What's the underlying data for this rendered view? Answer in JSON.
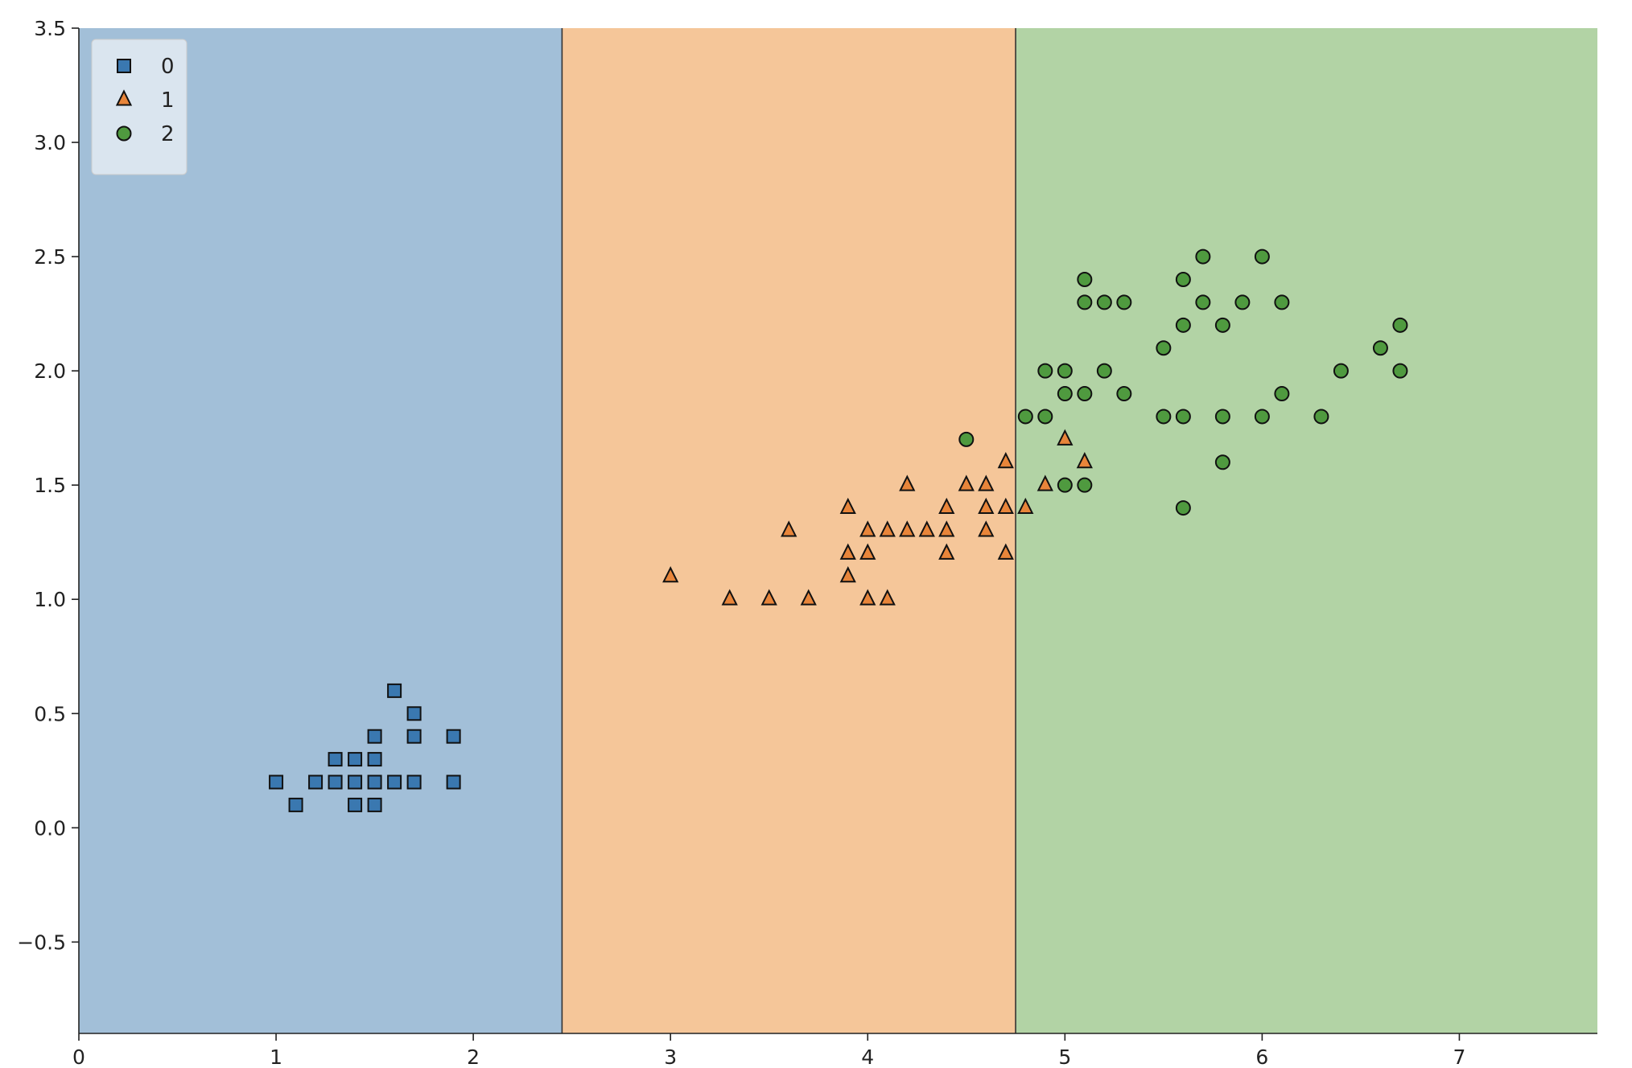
{
  "chart_data": {
    "type": "scatter",
    "title": "",
    "xlabel": "",
    "ylabel": "",
    "xlim": [
      0,
      7.7
    ],
    "ylim": [
      -0.9,
      3.5
    ],
    "x_ticks": [
      0,
      1,
      2,
      3,
      4,
      5,
      6,
      7
    ],
    "y_ticks": [
      -0.5,
      0.0,
      0.5,
      1.0,
      1.5,
      2.0,
      2.5,
      3.0,
      3.5
    ],
    "x_tick_labels": [
      "0",
      "1",
      "2",
      "3",
      "4",
      "5",
      "6",
      "7"
    ],
    "y_tick_labels": [
      "−0.5",
      "0.0",
      "0.5",
      "1.0",
      "1.5",
      "2.0",
      "2.5",
      "3.0",
      "3.5"
    ],
    "legend_position": "top-left",
    "decision_regions": [
      {
        "class": "0",
        "x_from": 0,
        "x_to": 2.45,
        "color": "#a2bfd8"
      },
      {
        "class": "1",
        "x_from": 2.45,
        "x_to": 4.75,
        "color": "#f5c699"
      },
      {
        "class": "2",
        "x_from": 4.75,
        "x_to": 7.7,
        "color": "#b2d3a5"
      }
    ],
    "boundaries": [
      2.45,
      4.75
    ],
    "series": [
      {
        "name": "0",
        "marker": "square",
        "color": "#3a78b0",
        "points": [
          [
            1.0,
            0.2
          ],
          [
            1.1,
            0.1
          ],
          [
            1.2,
            0.2
          ],
          [
            1.3,
            0.2
          ],
          [
            1.3,
            0.3
          ],
          [
            1.4,
            0.1
          ],
          [
            1.4,
            0.2
          ],
          [
            1.4,
            0.3
          ],
          [
            1.5,
            0.1
          ],
          [
            1.5,
            0.2
          ],
          [
            1.5,
            0.3
          ],
          [
            1.5,
            0.4
          ],
          [
            1.6,
            0.2
          ],
          [
            1.6,
            0.6
          ],
          [
            1.7,
            0.2
          ],
          [
            1.7,
            0.4
          ],
          [
            1.7,
            0.5
          ],
          [
            1.9,
            0.2
          ],
          [
            1.9,
            0.4
          ]
        ]
      },
      {
        "name": "1",
        "marker": "triangle",
        "color": "#e8853a",
        "points": [
          [
            3.0,
            1.1
          ],
          [
            3.3,
            1.0
          ],
          [
            3.5,
            1.0
          ],
          [
            3.6,
            1.3
          ],
          [
            3.7,
            1.0
          ],
          [
            3.9,
            1.1
          ],
          [
            3.9,
            1.2
          ],
          [
            3.9,
            1.4
          ],
          [
            4.0,
            1.0
          ],
          [
            4.0,
            1.2
          ],
          [
            4.0,
            1.3
          ],
          [
            4.1,
            1.0
          ],
          [
            4.1,
            1.3
          ],
          [
            4.2,
            1.3
          ],
          [
            4.2,
            1.5
          ],
          [
            4.3,
            1.3
          ],
          [
            4.4,
            1.2
          ],
          [
            4.4,
            1.3
          ],
          [
            4.4,
            1.4
          ],
          [
            4.5,
            1.5
          ],
          [
            4.6,
            1.3
          ],
          [
            4.6,
            1.4
          ],
          [
            4.6,
            1.5
          ],
          [
            4.7,
            1.2
          ],
          [
            4.7,
            1.4
          ],
          [
            4.7,
            1.6
          ],
          [
            4.8,
            1.4
          ],
          [
            4.9,
            1.5
          ],
          [
            5.0,
            1.7
          ],
          [
            5.1,
            1.6
          ]
        ]
      },
      {
        "name": "2",
        "marker": "circle",
        "color": "#4f9a3f",
        "points": [
          [
            4.5,
            1.7
          ],
          [
            4.8,
            1.8
          ],
          [
            4.9,
            1.8
          ],
          [
            4.9,
            2.0
          ],
          [
            5.0,
            1.5
          ],
          [
            5.0,
            1.9
          ],
          [
            5.0,
            2.0
          ],
          [
            5.1,
            1.5
          ],
          [
            5.1,
            1.9
          ],
          [
            5.1,
            2.3
          ],
          [
            5.1,
            2.4
          ],
          [
            5.2,
            2.0
          ],
          [
            5.2,
            2.3
          ],
          [
            5.3,
            1.9
          ],
          [
            5.3,
            2.3
          ],
          [
            5.5,
            1.8
          ],
          [
            5.5,
            2.1
          ],
          [
            5.6,
            1.4
          ],
          [
            5.6,
            1.8
          ],
          [
            5.6,
            2.2
          ],
          [
            5.6,
            2.4
          ],
          [
            5.7,
            2.3
          ],
          [
            5.7,
            2.5
          ],
          [
            5.8,
            1.6
          ],
          [
            5.8,
            1.8
          ],
          [
            5.8,
            2.2
          ],
          [
            5.9,
            2.3
          ],
          [
            6.0,
            1.8
          ],
          [
            6.0,
            2.5
          ],
          [
            6.1,
            1.9
          ],
          [
            6.1,
            2.3
          ],
          [
            6.3,
            1.8
          ],
          [
            6.4,
            2.0
          ],
          [
            6.6,
            2.1
          ],
          [
            6.7,
            2.0
          ],
          [
            6.7,
            2.2
          ]
        ]
      }
    ]
  }
}
